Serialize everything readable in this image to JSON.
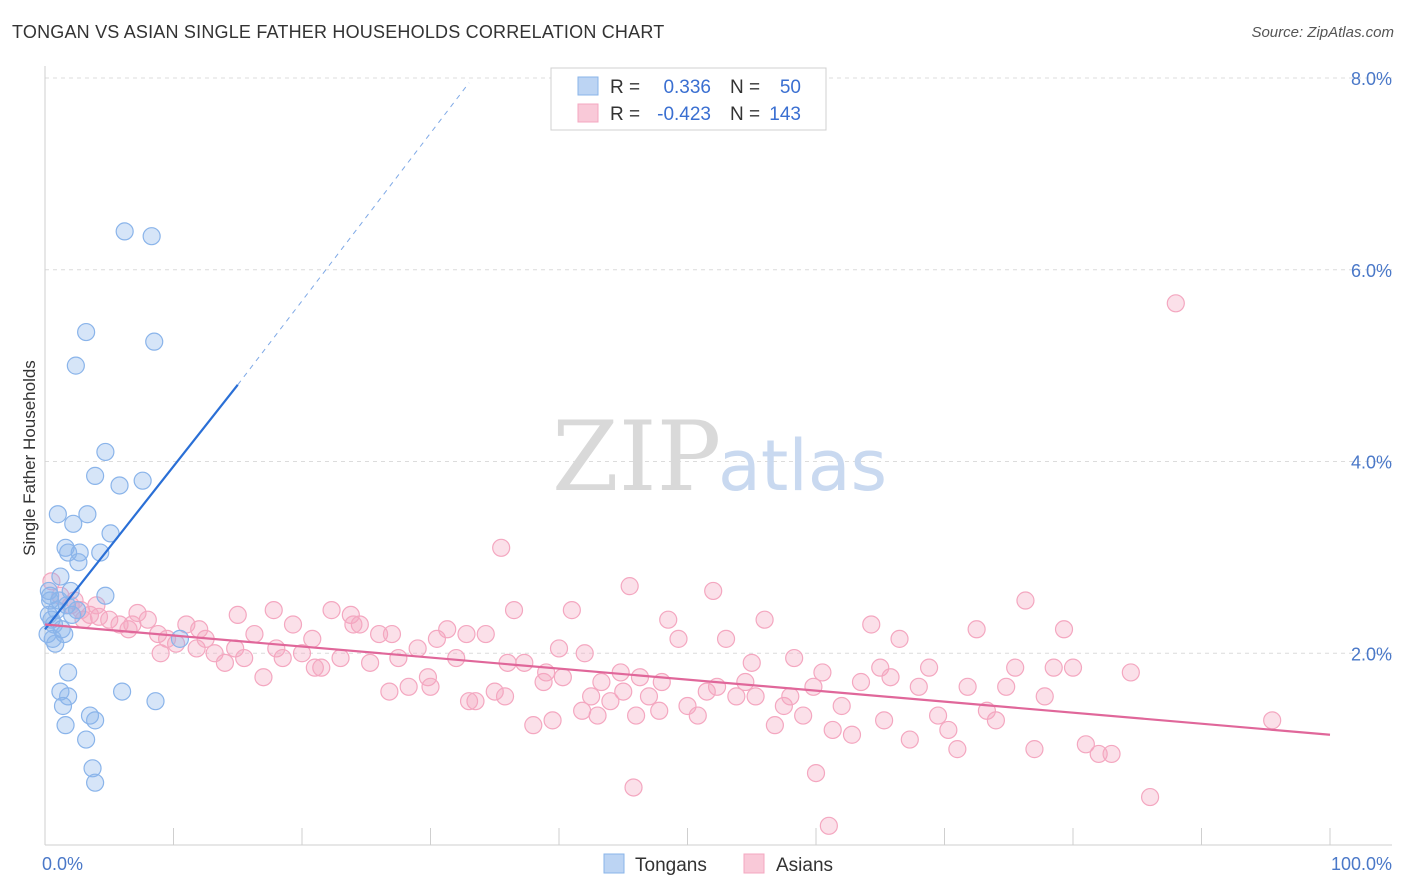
{
  "title": "TONGAN VS ASIAN SINGLE FATHER HOUSEHOLDS CORRELATION CHART",
  "source": "Source: ZipAtlas.com",
  "watermark": {
    "zip": "ZIP",
    "atlas": "atlas"
  },
  "legend": {
    "rows": [
      {
        "r_label": "R =",
        "r_value": "0.336",
        "n_label": "N =",
        "n_value": "50"
      },
      {
        "r_label": "R =",
        "r_value": "-0.423",
        "n_label": "N =",
        "n_value": "143"
      }
    ]
  },
  "bottom_legend": {
    "tongans": "Tongans",
    "asians": "Asians"
  },
  "colors": {
    "tongan": "#8ab4ea",
    "tongan_line": "#2a6fd6",
    "asian": "#f4a7c0",
    "asian_line": "#e0679a",
    "tick": "#4a78c8"
  },
  "chart_data": {
    "type": "scatter",
    "title": "TONGAN VS ASIAN SINGLE FATHER HOUSEHOLDS CORRELATION CHART",
    "xlabel": "",
    "ylabel": "Single Father Households",
    "xlim": [
      0,
      100
    ],
    "ylim": [
      0,
      8.0
    ],
    "x_tick_labels": [
      "0.0%",
      "100.0%"
    ],
    "y_ticks": [
      2.0,
      4.0,
      6.0,
      8.0
    ],
    "y_tick_labels": [
      "2.0%",
      "4.0%",
      "6.0%",
      "8.0%"
    ],
    "series": [
      {
        "name": "Tongans",
        "r": 0.336,
        "n": 50,
        "trend": {
          "x0": 0,
          "y0": 2.25,
          "x1": 15,
          "y1": 4.8,
          "dash_to_x": 33,
          "dash_to_y": 7.95
        },
        "points": [
          [
            6.2,
            6.4
          ],
          [
            8.3,
            6.35
          ],
          [
            3.2,
            5.35
          ],
          [
            8.5,
            5.25
          ],
          [
            2.4,
            5.0
          ],
          [
            4.7,
            4.1
          ],
          [
            3.9,
            3.85
          ],
          [
            7.6,
            3.8
          ],
          [
            5.8,
            3.75
          ],
          [
            1.0,
            3.45
          ],
          [
            3.3,
            3.45
          ],
          [
            2.2,
            3.35
          ],
          [
            5.1,
            3.25
          ],
          [
            1.6,
            3.1
          ],
          [
            2.7,
            3.05
          ],
          [
            4.3,
            3.05
          ],
          [
            1.8,
            3.05
          ],
          [
            2.6,
            2.95
          ],
          [
            1.2,
            2.8
          ],
          [
            0.3,
            2.65
          ],
          [
            2.0,
            2.65
          ],
          [
            4.7,
            2.6
          ],
          [
            0.4,
            2.55
          ],
          [
            1.7,
            2.5
          ],
          [
            0.9,
            2.45
          ],
          [
            2.1,
            2.4
          ],
          [
            0.5,
            2.35
          ],
          [
            0.7,
            2.3
          ],
          [
            1.3,
            2.25
          ],
          [
            0.2,
            2.2
          ],
          [
            0.6,
            2.15
          ],
          [
            0.8,
            2.1
          ],
          [
            1.5,
            2.2
          ],
          [
            0.3,
            2.4
          ],
          [
            1.1,
            2.55
          ],
          [
            1.8,
            1.8
          ],
          [
            1.2,
            1.6
          ],
          [
            1.8,
            1.55
          ],
          [
            6.0,
            1.6
          ],
          [
            8.6,
            1.5
          ],
          [
            1.4,
            1.45
          ],
          [
            3.5,
            1.35
          ],
          [
            3.9,
            1.3
          ],
          [
            1.6,
            1.25
          ],
          [
            3.2,
            1.1
          ],
          [
            3.7,
            0.8
          ],
          [
            3.9,
            0.65
          ],
          [
            10.5,
            2.15
          ],
          [
            0.4,
            2.6
          ],
          [
            2.5,
            2.45
          ]
        ]
      },
      {
        "name": "Asians",
        "r": -0.423,
        "n": 143,
        "trend": {
          "x0": 0,
          "y0": 2.3,
          "x1": 100,
          "y1": 1.15
        },
        "points": [
          [
            0.5,
            2.75
          ],
          [
            1.2,
            2.6
          ],
          [
            2.0,
            2.5
          ],
          [
            2.8,
            2.45
          ],
          [
            3.5,
            2.4
          ],
          [
            4.2,
            2.38
          ],
          [
            5.0,
            2.35
          ],
          [
            5.8,
            2.3
          ],
          [
            6.5,
            2.25
          ],
          [
            7.2,
            2.42
          ],
          [
            8.0,
            2.35
          ],
          [
            8.8,
            2.2
          ],
          [
            9.5,
            2.15
          ],
          [
            10.2,
            2.1
          ],
          [
            11.0,
            2.3
          ],
          [
            11.8,
            2.05
          ],
          [
            12.5,
            2.15
          ],
          [
            13.2,
            2.0
          ],
          [
            14.0,
            1.9
          ],
          [
            14.8,
            2.05
          ],
          [
            15.5,
            1.95
          ],
          [
            16.3,
            2.2
          ],
          [
            17.0,
            1.75
          ],
          [
            17.8,
            2.45
          ],
          [
            18.5,
            1.95
          ],
          [
            19.3,
            2.3
          ],
          [
            20.0,
            2.0
          ],
          [
            20.8,
            2.15
          ],
          [
            21.5,
            1.85
          ],
          [
            22.3,
            2.45
          ],
          [
            23.0,
            1.95
          ],
          [
            23.8,
            2.4
          ],
          [
            24.5,
            2.3
          ],
          [
            25.3,
            1.9
          ],
          [
            26.0,
            2.2
          ],
          [
            26.8,
            1.6
          ],
          [
            27.5,
            1.95
          ],
          [
            28.3,
            1.65
          ],
          [
            29.0,
            2.05
          ],
          [
            29.8,
            1.75
          ],
          [
            30.5,
            2.15
          ],
          [
            31.3,
            2.25
          ],
          [
            32.0,
            1.95
          ],
          [
            32.8,
            2.2
          ],
          [
            33.5,
            1.5
          ],
          [
            34.3,
            2.2
          ],
          [
            35.0,
            1.6
          ],
          [
            35.8,
            1.55
          ],
          [
            36.5,
            2.45
          ],
          [
            37.3,
            1.9
          ],
          [
            38.0,
            1.25
          ],
          [
            38.8,
            1.7
          ],
          [
            39.5,
            1.3
          ],
          [
            40.3,
            1.75
          ],
          [
            41.0,
            2.45
          ],
          [
            41.8,
            1.4
          ],
          [
            42.5,
            1.55
          ],
          [
            43.3,
            1.7
          ],
          [
            44.0,
            1.5
          ],
          [
            44.8,
            1.8
          ],
          [
            45.5,
            2.7
          ],
          [
            46.3,
            1.75
          ],
          [
            47.0,
            1.55
          ],
          [
            47.8,
            1.4
          ],
          [
            48.5,
            2.35
          ],
          [
            49.3,
            2.15
          ],
          [
            50.0,
            1.45
          ],
          [
            50.8,
            1.35
          ],
          [
            51.5,
            1.6
          ],
          [
            52.3,
            1.65
          ],
          [
            53.0,
            2.15
          ],
          [
            53.8,
            1.55
          ],
          [
            54.5,
            1.7
          ],
          [
            55.3,
            1.55
          ],
          [
            56.0,
            2.35
          ],
          [
            56.8,
            1.25
          ],
          [
            57.5,
            1.45
          ],
          [
            58.3,
            1.95
          ],
          [
            59.0,
            1.35
          ],
          [
            59.8,
            1.65
          ],
          [
            60.5,
            1.8
          ],
          [
            61.3,
            1.2
          ],
          [
            62.0,
            1.45
          ],
          [
            62.8,
            1.15
          ],
          [
            63.5,
            1.7
          ],
          [
            64.3,
            2.3
          ],
          [
            65.0,
            1.85
          ],
          [
            65.8,
            1.75
          ],
          [
            66.5,
            2.15
          ],
          [
            67.3,
            1.1
          ],
          [
            68.0,
            1.65
          ],
          [
            68.8,
            1.85
          ],
          [
            69.5,
            1.35
          ],
          [
            70.3,
            1.2
          ],
          [
            71.0,
            1.0
          ],
          [
            71.8,
            1.65
          ],
          [
            72.5,
            2.25
          ],
          [
            73.3,
            1.4
          ],
          [
            74.0,
            1.3
          ],
          [
            74.8,
            1.65
          ],
          [
            75.5,
            1.85
          ],
          [
            76.3,
            2.55
          ],
          [
            77.0,
            1.0
          ],
          [
            77.8,
            1.55
          ],
          [
            78.5,
            1.85
          ],
          [
            79.3,
            2.25
          ],
          [
            80.0,
            1.85
          ],
          [
            81.0,
            1.05
          ],
          [
            82.0,
            0.95
          ],
          [
            83.0,
            0.95
          ],
          [
            84.5,
            1.8
          ],
          [
            86.0,
            0.5
          ],
          [
            88.0,
            5.65
          ],
          [
            95.5,
            1.3
          ],
          [
            35.5,
            3.1
          ],
          [
            40.0,
            2.05
          ],
          [
            43.0,
            1.35
          ],
          [
            46.0,
            1.35
          ],
          [
            58.0,
            1.55
          ],
          [
            60.0,
            0.75
          ],
          [
            61.0,
            0.2
          ],
          [
            45.8,
            0.6
          ],
          [
            52.0,
            2.65
          ],
          [
            55.0,
            1.9
          ],
          [
            65.3,
            1.3
          ],
          [
            2.3,
            2.55
          ],
          [
            3.0,
            2.35
          ],
          [
            4.0,
            2.5
          ],
          [
            6.8,
            2.3
          ],
          [
            9.0,
            2.0
          ],
          [
            12.0,
            2.25
          ],
          [
            15.0,
            2.4
          ],
          [
            18.0,
            2.05
          ],
          [
            21.0,
            1.85
          ],
          [
            24.0,
            2.3
          ],
          [
            27.0,
            2.2
          ],
          [
            30.0,
            1.65
          ],
          [
            33.0,
            1.5
          ],
          [
            36.0,
            1.9
          ],
          [
            39.0,
            1.8
          ],
          [
            42.0,
            2.0
          ],
          [
            45.0,
            1.6
          ],
          [
            48.0,
            1.7
          ]
        ]
      }
    ]
  }
}
